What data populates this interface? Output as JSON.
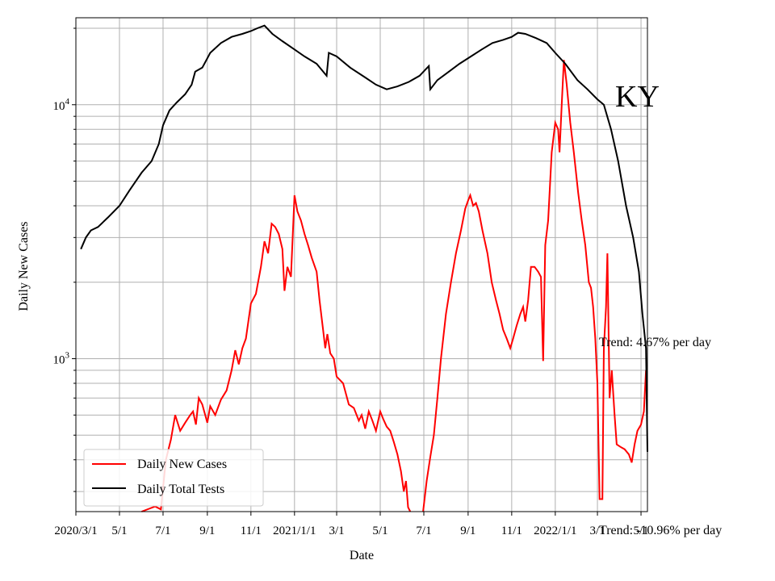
{
  "chart_data": {
    "type": "line",
    "state_label": "KY",
    "xlabel": "Date",
    "ylabel": "Daily New Cases",
    "y_scale": "log",
    "ylim": [
      250,
      22000
    ],
    "xlim": [
      "2020-03-01",
      "2022-05-10"
    ],
    "grid": true,
    "legend_placement": "lower-left",
    "x_tick_labels": [
      "2020/3/1",
      "5/1",
      "7/1",
      "9/1",
      "11/1",
      "2021/1/1",
      "3/1",
      "5/1",
      "7/1",
      "9/1",
      "11/1",
      "2022/1/1",
      "3/1",
      "5/1"
    ],
    "x_tick_dates": [
      "2020-03-01",
      "2020-05-01",
      "2020-07-01",
      "2020-09-01",
      "2020-11-01",
      "2021-01-01",
      "2021-03-01",
      "2021-05-01",
      "2021-07-01",
      "2021-09-01",
      "2021-11-01",
      "2022-01-01",
      "2022-03-01",
      "2022-05-01"
    ],
    "y_major_ticks": [
      {
        "value": 1000,
        "base": "10",
        "exp": "3"
      },
      {
        "value": 10000,
        "base": "10",
        "exp": "4"
      }
    ],
    "annotations": {
      "trend_cases": "Trend: 4.67% per day",
      "trend_tests": "Trend: -10.96% per day"
    },
    "series": [
      {
        "name": "Daily New Cases",
        "color": "#ff0000",
        "points": [
          [
            "2020-06-01",
            250
          ],
          [
            "2020-06-20",
            262
          ],
          [
            "2020-06-28",
            255
          ],
          [
            "2020-07-05",
            400
          ],
          [
            "2020-07-12",
            480
          ],
          [
            "2020-07-18",
            600
          ],
          [
            "2020-07-25",
            520
          ],
          [
            "2020-08-01",
            560
          ],
          [
            "2020-08-08",
            600
          ],
          [
            "2020-08-12",
            620
          ],
          [
            "2020-08-16",
            550
          ],
          [
            "2020-08-20",
            700
          ],
          [
            "2020-08-25",
            660
          ],
          [
            "2020-09-01",
            560
          ],
          [
            "2020-09-05",
            650
          ],
          [
            "2020-09-12",
            600
          ],
          [
            "2020-09-20",
            690
          ],
          [
            "2020-09-28",
            750
          ],
          [
            "2020-10-05",
            900
          ],
          [
            "2020-10-10",
            1080
          ],
          [
            "2020-10-15",
            950
          ],
          [
            "2020-10-20",
            1100
          ],
          [
            "2020-10-25",
            1200
          ],
          [
            "2020-11-01",
            1650
          ],
          [
            "2020-11-08",
            1800
          ],
          [
            "2020-11-15",
            2300
          ],
          [
            "2020-11-20",
            2900
          ],
          [
            "2020-11-25",
            2600
          ],
          [
            "2020-11-30",
            3400
          ],
          [
            "2020-12-05",
            3300
          ],
          [
            "2020-12-10",
            3100
          ],
          [
            "2020-12-15",
            2700
          ],
          [
            "2020-12-18",
            1850
          ],
          [
            "2020-12-22",
            2300
          ],
          [
            "2020-12-27",
            2100
          ],
          [
            "2021-01-01",
            4400
          ],
          [
            "2021-01-05",
            3800
          ],
          [
            "2021-01-10",
            3500
          ],
          [
            "2021-01-15",
            3100
          ],
          [
            "2021-01-20",
            2800
          ],
          [
            "2021-01-25",
            2500
          ],
          [
            "2021-02-01",
            2200
          ],
          [
            "2021-02-05",
            1700
          ],
          [
            "2021-02-10",
            1300
          ],
          [
            "2021-02-13",
            1100
          ],
          [
            "2021-02-16",
            1250
          ],
          [
            "2021-02-20",
            1050
          ],
          [
            "2021-02-25",
            1000
          ],
          [
            "2021-03-01",
            850
          ],
          [
            "2021-03-10",
            800
          ],
          [
            "2021-03-18",
            660
          ],
          [
            "2021-03-25",
            640
          ],
          [
            "2021-04-01",
            570
          ],
          [
            "2021-04-05",
            600
          ],
          [
            "2021-04-10",
            530
          ],
          [
            "2021-04-15",
            620
          ],
          [
            "2021-04-20",
            570
          ],
          [
            "2021-04-25",
            520
          ],
          [
            "2021-05-01",
            620
          ],
          [
            "2021-05-05",
            580
          ],
          [
            "2021-05-10",
            540
          ],
          [
            "2021-05-15",
            520
          ],
          [
            "2021-05-20",
            470
          ],
          [
            "2021-05-25",
            420
          ],
          [
            "2021-05-30",
            360
          ],
          [
            "2021-06-03",
            300
          ],
          [
            "2021-06-06",
            330
          ],
          [
            "2021-06-09",
            260
          ],
          [
            "2021-06-12",
            250
          ]
        ],
        "points_b": [
          [
            "2021-06-30",
            250
          ],
          [
            "2021-07-05",
            330
          ],
          [
            "2021-07-10",
            410
          ],
          [
            "2021-07-15",
            500
          ],
          [
            "2021-07-20",
            700
          ],
          [
            "2021-07-25",
            1000
          ],
          [
            "2021-08-01",
            1500
          ],
          [
            "2021-08-08",
            2000
          ],
          [
            "2021-08-15",
            2600
          ],
          [
            "2021-08-22",
            3200
          ],
          [
            "2021-08-28",
            3900
          ],
          [
            "2021-09-01",
            4200
          ],
          [
            "2021-09-04",
            4400
          ],
          [
            "2021-09-08",
            4000
          ],
          [
            "2021-09-12",
            4100
          ],
          [
            "2021-09-16",
            3800
          ],
          [
            "2021-09-21",
            3200
          ],
          [
            "2021-09-28",
            2600
          ],
          [
            "2021-10-04",
            2000
          ],
          [
            "2021-10-10",
            1700
          ],
          [
            "2021-10-15",
            1500
          ],
          [
            "2021-10-20",
            1300
          ],
          [
            "2021-10-25",
            1200
          ],
          [
            "2021-10-30",
            1100
          ],
          [
            "2021-11-03",
            1200
          ],
          [
            "2021-11-08",
            1350
          ],
          [
            "2021-11-13",
            1500
          ],
          [
            "2021-11-17",
            1600
          ],
          [
            "2021-11-20",
            1400
          ],
          [
            "2021-11-24",
            1700
          ],
          [
            "2021-11-28",
            2300
          ],
          [
            "2021-12-03",
            2300
          ],
          [
            "2021-12-08",
            2200
          ],
          [
            "2021-12-12",
            2100
          ],
          [
            "2021-12-15",
            980
          ],
          [
            "2021-12-18",
            2800
          ],
          [
            "2021-12-22",
            3500
          ],
          [
            "2021-12-27",
            6500
          ],
          [
            "2022-01-01",
            8500
          ],
          [
            "2022-01-05",
            8000
          ],
          [
            "2022-01-07",
            6500
          ],
          [
            "2022-01-10",
            10000
          ],
          [
            "2022-01-13",
            15000
          ],
          [
            "2022-01-17",
            12000
          ],
          [
            "2022-01-22",
            8500
          ],
          [
            "2022-01-27",
            6500
          ],
          [
            "2022-02-02",
            4500
          ],
          [
            "2022-02-07",
            3500
          ],
          [
            "2022-02-12",
            2800
          ],
          [
            "2022-02-17",
            2000
          ],
          [
            "2022-02-20",
            1900
          ],
          [
            "2022-02-23",
            1600
          ],
          [
            "2022-02-26",
            1200
          ],
          [
            "2022-03-01",
            800
          ],
          [
            "2022-03-04",
            280
          ],
          [
            "2022-03-08",
            280
          ],
          [
            "2022-03-10",
            1100
          ],
          [
            "2022-03-13",
            1600
          ],
          [
            "2022-03-15",
            2600
          ],
          [
            "2022-03-18",
            700
          ],
          [
            "2022-03-21",
            900
          ],
          [
            "2022-03-25",
            600
          ],
          [
            "2022-03-28",
            460
          ],
          [
            "2022-04-02",
            450
          ],
          [
            "2022-04-08",
            440
          ],
          [
            "2022-04-14",
            420
          ],
          [
            "2022-04-18",
            390
          ],
          [
            "2022-04-22",
            460
          ],
          [
            "2022-04-26",
            520
          ],
          [
            "2022-05-01",
            550
          ],
          [
            "2022-05-05",
            620
          ],
          [
            "2022-05-08",
            900
          ]
        ]
      },
      {
        "name": "Daily Total Tests",
        "color": "#000000",
        "points": [
          [
            "2020-03-08",
            2700
          ],
          [
            "2020-03-15",
            3000
          ],
          [
            "2020-03-22",
            3200
          ],
          [
            "2020-04-01",
            3300
          ],
          [
            "2020-04-15",
            3600
          ],
          [
            "2020-05-01",
            4000
          ],
          [
            "2020-05-15",
            4600
          ],
          [
            "2020-06-01",
            5400
          ],
          [
            "2020-06-15",
            6000
          ],
          [
            "2020-06-25",
            7000
          ],
          [
            "2020-07-01",
            8300
          ],
          [
            "2020-07-10",
            9500
          ],
          [
            "2020-07-20",
            10200
          ],
          [
            "2020-08-01",
            11000
          ],
          [
            "2020-08-10",
            12000
          ],
          [
            "2020-08-15",
            13500
          ],
          [
            "2020-08-25",
            14000
          ],
          [
            "2020-09-05",
            16000
          ],
          [
            "2020-09-20",
            17500
          ],
          [
            "2020-10-05",
            18500
          ],
          [
            "2020-10-20",
            19000
          ],
          [
            "2020-11-01",
            19500
          ],
          [
            "2020-11-10",
            20000
          ],
          [
            "2020-11-20",
            20500
          ],
          [
            "2020-12-01",
            19000
          ],
          [
            "2020-12-15",
            17800
          ],
          [
            "2021-01-01",
            16500
          ],
          [
            "2021-01-15",
            15500
          ],
          [
            "2021-02-01",
            14500
          ],
          [
            "2021-02-15",
            13000
          ],
          [
            "2021-02-18",
            16000
          ],
          [
            "2021-03-01",
            15500
          ],
          [
            "2021-03-20",
            14000
          ],
          [
            "2021-04-10",
            12800
          ],
          [
            "2021-04-25",
            12000
          ],
          [
            "2021-05-10",
            11500
          ],
          [
            "2021-05-25",
            11800
          ],
          [
            "2021-06-10",
            12300
          ],
          [
            "2021-06-25",
            13000
          ],
          [
            "2021-07-08",
            14200
          ],
          [
            "2021-07-10",
            11500
          ],
          [
            "2021-07-20",
            12500
          ],
          [
            "2021-08-05",
            13500
          ],
          [
            "2021-08-20",
            14500
          ],
          [
            "2021-09-05",
            15500
          ],
          [
            "2021-09-20",
            16500
          ],
          [
            "2021-10-05",
            17500
          ],
          [
            "2021-10-20",
            18000
          ],
          [
            "2021-11-01",
            18500
          ],
          [
            "2021-11-10",
            19200
          ],
          [
            "2021-11-20",
            19000
          ],
          [
            "2021-12-05",
            18300
          ],
          [
            "2021-12-20",
            17500
          ],
          [
            "2022-01-01",
            16000
          ],
          [
            "2022-01-15",
            14500
          ],
          [
            "2022-02-01",
            12500
          ],
          [
            "2022-02-15",
            11500
          ],
          [
            "2022-03-01",
            10500
          ],
          [
            "2022-03-10",
            10000
          ],
          [
            "2022-03-20",
            8000
          ],
          [
            "2022-03-30",
            6000
          ],
          [
            "2022-04-10",
            4000
          ],
          [
            "2022-04-20",
            3000
          ],
          [
            "2022-04-28",
            2200
          ],
          [
            "2022-05-03",
            1500
          ],
          [
            "2022-05-08",
            1100
          ],
          [
            "2022-05-10",
            430
          ]
        ]
      }
    ]
  }
}
